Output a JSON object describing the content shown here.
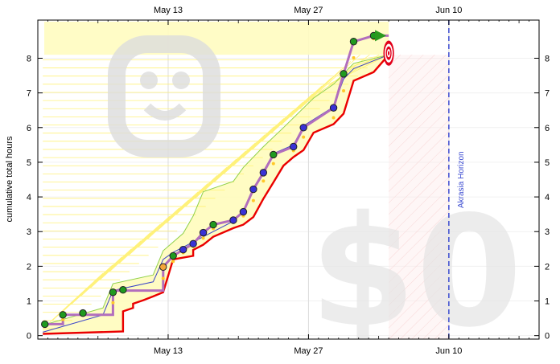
{
  "chart_data": {
    "type": "line",
    "title": "",
    "xlabel": "",
    "ylabel": "cumulative total hours",
    "x_unit": "days since Apr 30",
    "xlim": [
      0,
      50
    ],
    "ylim": [
      -0.1,
      9.1
    ],
    "y_ticks": [
      0,
      1,
      2,
      3,
      4,
      5,
      6,
      7,
      8
    ],
    "x_ticks": [
      {
        "x": 13,
        "label": "May 13"
      },
      {
        "x": 27,
        "label": "May 27"
      },
      {
        "x": 41,
        "label": "Jun 10"
      }
    ],
    "horizon": {
      "x": 41,
      "label": "Akrasia Horizon"
    },
    "goal": {
      "x": 35,
      "y": 8.1
    },
    "future_region_start_x": 35,
    "watermark": "$0",
    "series": [
      {
        "name": "datapoints",
        "points": [
          {
            "x": 0.7,
            "y": 0.33,
            "color": "green"
          },
          {
            "x": 2.5,
            "y": 0.6,
            "color": "green"
          },
          {
            "x": 4.5,
            "y": 0.65,
            "color": "green"
          },
          {
            "x": 7.5,
            "y": 1.25,
            "color": "green"
          },
          {
            "x": 8.5,
            "y": 1.32,
            "color": "green"
          },
          {
            "x": 12.5,
            "y": 1.98,
            "color": "orange"
          },
          {
            "x": 13.5,
            "y": 2.3,
            "color": "green"
          },
          {
            "x": 14.5,
            "y": 2.48,
            "color": "blue"
          },
          {
            "x": 15.5,
            "y": 2.65,
            "color": "blue"
          },
          {
            "x": 16.5,
            "y": 2.97,
            "color": "blue"
          },
          {
            "x": 17.5,
            "y": 3.2,
            "color": "green"
          },
          {
            "x": 19.5,
            "y": 3.33,
            "color": "blue"
          },
          {
            "x": 20.5,
            "y": 3.57,
            "color": "blue"
          },
          {
            "x": 21.5,
            "y": 4.22,
            "color": "blue"
          },
          {
            "x": 22.5,
            "y": 4.7,
            "color": "blue"
          },
          {
            "x": 23.5,
            "y": 5.22,
            "color": "green"
          },
          {
            "x": 25.5,
            "y": 5.45,
            "color": "blue"
          },
          {
            "x": 26.5,
            "y": 6.0,
            "color": "blue"
          },
          {
            "x": 29.5,
            "y": 6.57,
            "color": "blue"
          },
          {
            "x": 30.5,
            "y": 7.55,
            "color": "green"
          },
          {
            "x": 31.5,
            "y": 8.48,
            "color": "green"
          },
          {
            "x": 33.5,
            "y": 8.65,
            "color": "green"
          }
        ]
      },
      {
        "name": "bright red line",
        "points": [
          [
            0.5,
            0.05
          ],
          [
            8.5,
            0.12
          ],
          [
            8.5,
            0.7
          ],
          [
            9.5,
            0.8
          ],
          [
            9.5,
            0.92
          ],
          [
            10.5,
            1.02
          ],
          [
            11.5,
            1.13
          ],
          [
            12.5,
            1.25
          ],
          [
            13.5,
            2.2
          ],
          [
            15.5,
            2.3
          ],
          [
            15.5,
            2.47
          ],
          [
            16.5,
            2.62
          ],
          [
            17.5,
            2.85
          ],
          [
            19.5,
            3.1
          ],
          [
            20.5,
            3.2
          ],
          [
            21.5,
            3.42
          ],
          [
            22.5,
            3.95
          ],
          [
            23.5,
            4.42
          ],
          [
            24.5,
            4.9
          ],
          [
            25.5,
            5.15
          ],
          [
            26.5,
            5.35
          ],
          [
            27.5,
            5.85
          ],
          [
            29.5,
            6.1
          ],
          [
            30.5,
            6.4
          ],
          [
            31.5,
            7.35
          ],
          [
            33.5,
            7.6
          ],
          [
            35,
            8.1
          ]
        ]
      },
      {
        "name": "lane line",
        "points": [
          [
            0.5,
            0.1
          ],
          [
            6.5,
            0.6
          ],
          [
            7.5,
            1.3
          ],
          [
            11.5,
            1.55
          ],
          [
            12.5,
            2.2
          ],
          [
            13.5,
            2.4
          ],
          [
            19.5,
            3.3
          ],
          [
            20.5,
            3.6
          ],
          [
            21.5,
            4.25
          ],
          [
            22.5,
            4.75
          ],
          [
            23.5,
            5.25
          ],
          [
            25.5,
            5.5
          ],
          [
            26.5,
            6.05
          ],
          [
            29.5,
            6.6
          ],
          [
            30.5,
            7.4
          ],
          [
            31.5,
            7.7
          ],
          [
            35,
            8.1
          ]
        ]
      },
      {
        "name": "upper bound",
        "points": [
          [
            0.5,
            0.3
          ],
          [
            6.5,
            0.8
          ],
          [
            7.5,
            1.5
          ],
          [
            11.5,
            1.75
          ],
          [
            12.5,
            2.45
          ],
          [
            14.5,
            2.95
          ],
          [
            15.5,
            3.45
          ],
          [
            16.5,
            4.15
          ],
          [
            19.5,
            4.45
          ],
          [
            20.5,
            4.85
          ],
          [
            22.5,
            5.45
          ],
          [
            24.5,
            6.0
          ],
          [
            27.5,
            6.85
          ],
          [
            29.5,
            7.25
          ],
          [
            31.5,
            7.85
          ],
          [
            35,
            8.1
          ]
        ]
      },
      {
        "name": "purple steps",
        "points": [
          [
            0.7,
            0.33
          ],
          [
            2.5,
            0.33
          ],
          [
            2.5,
            0.6
          ],
          [
            7.5,
            0.6
          ],
          [
            7.5,
            1.3
          ],
          [
            12.5,
            1.3
          ],
          [
            12.5,
            1.98
          ],
          [
            13.5,
            2.3
          ],
          [
            14.5,
            2.48
          ],
          [
            15.5,
            2.65
          ],
          [
            16.5,
            2.97
          ],
          [
            17.5,
            3.2
          ],
          [
            19.5,
            3.33
          ],
          [
            20.5,
            3.57
          ],
          [
            21.5,
            4.22
          ],
          [
            22.5,
            4.7
          ],
          [
            23.5,
            5.22
          ],
          [
            25.5,
            5.45
          ],
          [
            26.5,
            6.0
          ],
          [
            29.5,
            6.57
          ],
          [
            30.5,
            7.55
          ],
          [
            31.5,
            8.48
          ],
          [
            33.5,
            8.65
          ],
          [
            35,
            8.65
          ]
        ]
      }
    ]
  }
}
